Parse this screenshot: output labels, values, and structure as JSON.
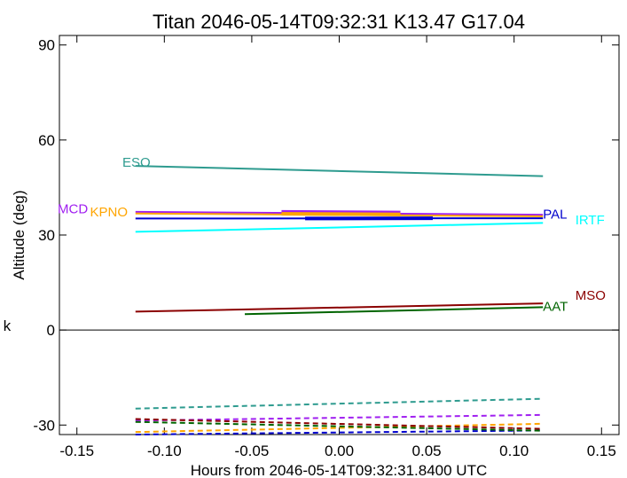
{
  "chart_data": {
    "type": "line",
    "title": "Titan 2046-05-14T09:32:31   K13.47   G17.04",
    "xlabel": "Hours from 2046-05-14T09:32:31.8400 UTC",
    "ylabel": "Altitude (deg)",
    "side_label": "k",
    "xlim": [
      -0.16,
      0.16
    ],
    "ylim": [
      -33,
      93
    ],
    "xticks": [
      -0.15,
      -0.1,
      -0.05,
      0.0,
      0.05,
      0.1,
      0.15
    ],
    "xtick_labels": [
      "-0.15",
      "-0.10",
      "-0.05",
      "0.00",
      "0.05",
      "0.10",
      "0.15"
    ],
    "yticks": [
      -30,
      0,
      30,
      60,
      90
    ],
    "ytick_labels": [
      "-30",
      "0",
      "30",
      "60",
      "90"
    ],
    "zero_line": true,
    "grid": false,
    "series": [
      {
        "name": "ESO",
        "color": "#2e9b8f",
        "label_pos": [
          -0.124,
          53.3
        ],
        "solid": {
          "x": [
            -0.1165,
            0.1165
          ],
          "y": [
            51.8,
            48.6
          ]
        },
        "dashed": {
          "x": [
            -0.1165,
            0.1165
          ],
          "y": [
            -24.8,
            -21.7
          ]
        }
      },
      {
        "name": "MCD",
        "color": "#a020f0",
        "label_pos": [
          -0.161,
          38.6
        ],
        "solid": {
          "x": [
            -0.1165,
            0.1165
          ],
          "y": [
            37.3,
            36.4
          ]
        },
        "thick": {
          "x": [
            -0.033,
            0.035
          ],
          "y": [
            37.3,
            37.1
          ]
        },
        "dashed": {
          "x": [
            -0.1165,
            0.1165
          ],
          "y": [
            -28.6,
            -26.8
          ]
        }
      },
      {
        "name": "KPNO",
        "color": "#ffa500",
        "label_pos": [
          -0.1425,
          37.6
        ],
        "solid": {
          "x": [
            -0.1165,
            0.1165
          ],
          "y": [
            36.8,
            35.9
          ]
        },
        "thick": {
          "x": [
            -0.033,
            0.035
          ],
          "y": [
            36.7,
            36.5
          ]
        },
        "dashed": {
          "x": [
            -0.1165,
            0.1165
          ],
          "y": [
            -32.2,
            -29.6
          ]
        }
      },
      {
        "name": "PAL",
        "color": "#0000cd",
        "label_pos": [
          0.1165,
          36.9
        ],
        "solid": {
          "x": [
            -0.1165,
            0.1165
          ],
          "y": [
            35.2,
            35.3
          ]
        },
        "thick": {
          "x": [
            -0.0195,
            0.0535
          ],
          "y": [
            35.2,
            35.3
          ]
        },
        "dashed": {
          "x": [
            -0.1165,
            0.1165
          ],
          "y": [
            -33.0,
            -31.7
          ]
        }
      },
      {
        "name": "IRTF",
        "color": "#00ffff",
        "label_pos": [
          0.135,
          35.1
        ],
        "solid": {
          "x": [
            -0.1165,
            0.1165
          ],
          "y": [
            31.0,
            33.8
          ]
        }
      },
      {
        "name": "MSO",
        "color": "#8b0000",
        "label_pos": [
          0.135,
          11.2
        ],
        "solid": {
          "x": [
            -0.1165,
            0.1165
          ],
          "y": [
            5.8,
            8.4
          ]
        },
        "dashed": {
          "x": [
            -0.1165,
            0.1165
          ],
          "y": [
            -28.1,
            -31.2
          ]
        }
      },
      {
        "name": "AAT",
        "color": "#006400",
        "label_pos": [
          0.1165,
          7.8
        ],
        "solid": {
          "x": [
            -0.054,
            0.1165
          ],
          "y": [
            5.0,
            7.2
          ]
        },
        "dashed": {
          "x": [
            -0.1165,
            0.1165
          ],
          "y": [
            -29.0,
            -31.8
          ]
        }
      }
    ]
  }
}
